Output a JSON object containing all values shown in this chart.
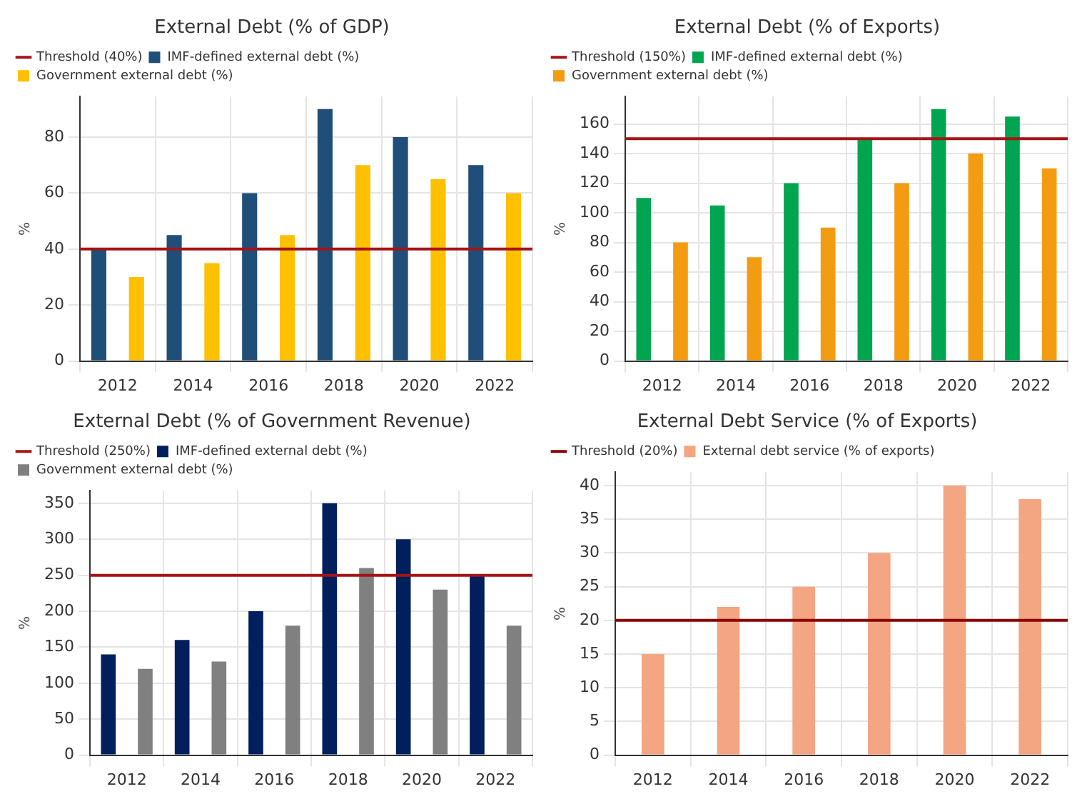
{
  "chart_data": [
    {
      "type": "bar",
      "title": "External Debt (% of GDP)",
      "ylabel": "%",
      "categories": [
        "2012",
        "2014",
        "2016",
        "2018",
        "2020",
        "2022"
      ],
      "series": [
        {
          "name": "IMF-defined external debt (%)",
          "color": "#1f4e79",
          "values": [
            40,
            45,
            60,
            90,
            80,
            70
          ]
        },
        {
          "name": "Government external debt (%)",
          "color": "#ffc000",
          "values": [
            30,
            35,
            45,
            70,
            65,
            60
          ]
        }
      ],
      "ylim": [
        0,
        94.5
      ],
      "yticks": [
        0,
        20,
        40,
        60,
        80
      ],
      "grid": true,
      "legend": "top left",
      "ref_lines": [
        {
          "axis": "y",
          "value": 40,
          "label": "Threshold (40%)",
          "color": "#a31515"
        }
      ]
    },
    {
      "type": "bar",
      "title": "External Debt (% of Exports)",
      "ylabel": "%",
      "categories": [
        "2012",
        "2014",
        "2016",
        "2018",
        "2020",
        "2022"
      ],
      "series": [
        {
          "name": "IMF-defined external debt (%)",
          "color": "#00a550",
          "values": [
            110,
            105,
            120,
            150,
            170,
            165
          ]
        },
        {
          "name": "Government external debt (%)",
          "color": "#f39c12",
          "values": [
            80,
            70,
            90,
            120,
            140,
            130
          ]
        }
      ],
      "ylim": [
        0,
        178.5
      ],
      "yticks": [
        0,
        20,
        40,
        60,
        80,
        100,
        120,
        140,
        160
      ],
      "grid": true,
      "legend": "top left",
      "ref_lines": [
        {
          "axis": "y",
          "value": 150,
          "label": "Threshold (150%)",
          "color": "#a31515"
        }
      ]
    },
    {
      "type": "bar",
      "title": "External Debt (% of Government Revenue)",
      "ylabel": "%",
      "categories": [
        "2012",
        "2014",
        "2016",
        "2018",
        "2020",
        "2022"
      ],
      "series": [
        {
          "name": "IMF-defined external debt (%)",
          "color": "#001f5c",
          "values": [
            140,
            160,
            200,
            350,
            300,
            250
          ]
        },
        {
          "name": "Government external debt (%)",
          "color": "#808080",
          "values": [
            120,
            130,
            180,
            260,
            230,
            180
          ]
        }
      ],
      "ylim": [
        0,
        367.5
      ],
      "yticks": [
        0,
        50,
        100,
        150,
        200,
        250,
        300,
        350
      ],
      "grid": true,
      "legend": "top left",
      "ref_lines": [
        {
          "axis": "y",
          "value": 250,
          "label": "Threshold (250%)",
          "color": "#a31515"
        }
      ]
    },
    {
      "type": "bar",
      "title": "External Debt Service (% of Exports)",
      "ylabel": "%",
      "categories": [
        "2012",
        "2014",
        "2016",
        "2018",
        "2020",
        "2022"
      ],
      "series": [
        {
          "name": "External debt service (% of exports)",
          "color": "#f4a582",
          "values": [
            15,
            22,
            25,
            30,
            40,
            38
          ]
        }
      ],
      "ylim": [
        0,
        42
      ],
      "yticks": [
        0,
        5,
        10,
        15,
        20,
        25,
        30,
        35,
        40
      ],
      "grid": true,
      "legend": "top left",
      "ref_lines": [
        {
          "axis": "y",
          "value": 20,
          "label": "Threshold (20%)",
          "color": "#8b0000"
        }
      ]
    }
  ]
}
